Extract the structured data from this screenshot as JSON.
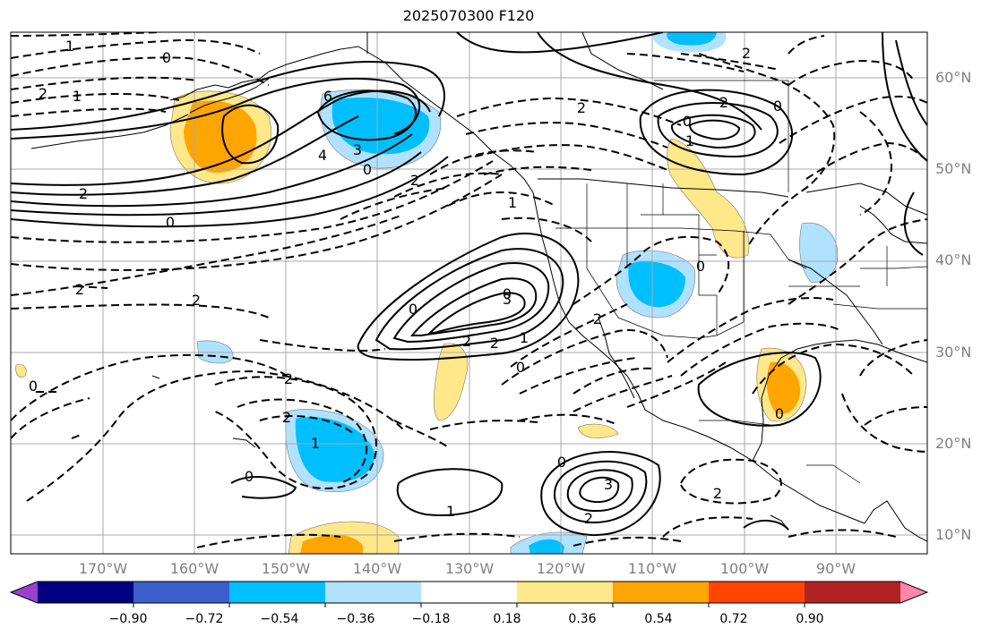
{
  "title": "2025070300 F120",
  "lat_labels": [
    "60°N",
    "50°N",
    "40°N",
    "30°N",
    "20°N",
    "10°N"
  ],
  "lon_labels": [
    "170°W",
    "160°W",
    "150°W",
    "140°W",
    "130°W",
    "120°W",
    "110°W",
    "100°W",
    "90°W"
  ],
  "colorbar": {
    "colors": [
      "#9a3fd0",
      "#000080",
      "#3a5fcd",
      "#00bfff",
      "#b0e2ff",
      "#ffffff",
      "#ffe88a",
      "#ffa500",
      "#ff4500",
      "#b22222",
      "#ff88aa"
    ],
    "labels": [
      "−0.90",
      "−0.72",
      "−0.54",
      "−0.36",
      "−0.18",
      "0.18",
      "0.36",
      "0.54",
      "0.72",
      "0.90"
    ]
  },
  "contour_labels": [
    "1",
    "0",
    "2",
    "1",
    "6",
    "3",
    "4",
    "0",
    "2",
    "2",
    "0",
    "2",
    "1",
    "2",
    "2",
    "0",
    "0",
    "3",
    "2",
    "2",
    "1",
    "0",
    "0",
    "2",
    "2",
    "1",
    "0",
    "2",
    "1",
    "0",
    "2",
    "0",
    "2",
    "0",
    "0",
    "0",
    "3",
    "2",
    "1",
    "2"
  ]
}
